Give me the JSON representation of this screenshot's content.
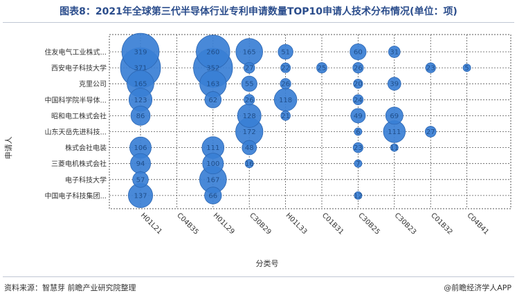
{
  "title": "图表8：2021年全球第三代半导体行业专利申请数量TOP10申请人技术分布情况(单位：项)",
  "source": "资料来源：智慧芽 前瞻产业研究院整理",
  "brand": "@前瞻经济学人APP",
  "chart_data": {
    "type": "scatter",
    "title": "图表8：2021年全球第三代半导体行业专利申请数量TOP10申请人技术分布情况(单位：项)",
    "xlabel": "分类号",
    "ylabel": "申请人",
    "x_categories": [
      "H01L21",
      "C04B35",
      "H01L29",
      "C30B29",
      "H01L33",
      "C01B31",
      "C30B25",
      "C30B23",
      "C01B32",
      "C04B41"
    ],
    "y_categories": [
      "住友电气工业株式...",
      "西安电子科技大学",
      "克里公司",
      "中国科学院半导体...",
      "昭和电工株式会社",
      "山东天岳先进科技...",
      "株式会社电装",
      "三菱电机株式会社",
      "电子科技大学",
      "中国电子科技集团..."
    ],
    "grid": "dashed",
    "colors": {
      "bubble": "#3a7fd5",
      "bubble_stroke": "#2b66b3",
      "label": "#1f4e8a"
    },
    "points": [
      {
        "applicant": "住友电气工业株式...",
        "class": "H01L21",
        "value": 319
      },
      {
        "applicant": "住友电气工业株式...",
        "class": "H01L29",
        "value": 260
      },
      {
        "applicant": "住友电气工业株式...",
        "class": "C30B29",
        "value": 165
      },
      {
        "applicant": "住友电气工业株式...",
        "class": "H01L33",
        "value": 51
      },
      {
        "applicant": "住友电气工业株式...",
        "class": "C30B25",
        "value": 60
      },
      {
        "applicant": "住友电气工业株式...",
        "class": "C30B23",
        "value": 31
      },
      {
        "applicant": "西安电子科技大学",
        "class": "H01L21",
        "value": 371
      },
      {
        "applicant": "西安电子科技大学",
        "class": "H01L29",
        "value": 352
      },
      {
        "applicant": "西安电子科技大学",
        "class": "C30B29",
        "value": 27
      },
      {
        "applicant": "西安电子科技大学",
        "class": "H01L33",
        "value": 22
      },
      {
        "applicant": "西安电子科技大学",
        "class": "C01B31",
        "value": 25
      },
      {
        "applicant": "西安电子科技大学",
        "class": "C30B25",
        "value": 26
      },
      {
        "applicant": "西安电子科技大学",
        "class": "C01B32",
        "value": 23
      },
      {
        "applicant": "西安电子科技大学",
        "class": "C04B41",
        "value": 5
      },
      {
        "applicant": "克里公司",
        "class": "H01L21",
        "value": 165
      },
      {
        "applicant": "克里公司",
        "class": "H01L29",
        "value": 163
      },
      {
        "applicant": "克里公司",
        "class": "C30B29",
        "value": 55
      },
      {
        "applicant": "克里公司",
        "class": "H01L33",
        "value": 26
      },
      {
        "applicant": "克里公司",
        "class": "C30B25",
        "value": 20
      },
      {
        "applicant": "克里公司",
        "class": "C30B23",
        "value": 39
      },
      {
        "applicant": "中国科学院半导体...",
        "class": "H01L21",
        "value": 123
      },
      {
        "applicant": "中国科学院半导体...",
        "class": "H01L29",
        "value": 62
      },
      {
        "applicant": "中国科学院半导体...",
        "class": "C30B29",
        "value": 26
      },
      {
        "applicant": "中国科学院半导体...",
        "class": "H01L33",
        "value": 118
      },
      {
        "applicant": "中国科学院半导体...",
        "class": "C30B25",
        "value": 24
      },
      {
        "applicant": "昭和电工株式会社",
        "class": "H01L21",
        "value": 86
      },
      {
        "applicant": "昭和电工株式会社",
        "class": "C30B29",
        "value": 128
      },
      {
        "applicant": "昭和电工株式会社",
        "class": "H01L33",
        "value": 21
      },
      {
        "applicant": "昭和电工株式会社",
        "class": "C30B25",
        "value": 49
      },
      {
        "applicant": "昭和电工株式会社",
        "class": "C30B23",
        "value": 69
      },
      {
        "applicant": "山东天岳先进科技...",
        "class": "C30B29",
        "value": 172
      },
      {
        "applicant": "山东天岳先进科技...",
        "class": "C30B25",
        "value": 6
      },
      {
        "applicant": "山东天岳先进科技...",
        "class": "C30B23",
        "value": 111
      },
      {
        "applicant": "山东天岳先进科技...",
        "class": "C01B32",
        "value": 27
      },
      {
        "applicant": "株式会社电装",
        "class": "H01L21",
        "value": 106
      },
      {
        "applicant": "株式会社电装",
        "class": "H01L29",
        "value": 111
      },
      {
        "applicant": "株式会社电装",
        "class": "C30B29",
        "value": 48
      },
      {
        "applicant": "株式会社电装",
        "class": "C30B25",
        "value": 23
      },
      {
        "applicant": "株式会社电装",
        "class": "C30B23",
        "value": 11
      },
      {
        "applicant": "三菱电机株式会社",
        "class": "H01L21",
        "value": 94
      },
      {
        "applicant": "三菱电机株式会社",
        "class": "H01L29",
        "value": 100
      },
      {
        "applicant": "三菱电机株式会社",
        "class": "C30B29",
        "value": 16
      },
      {
        "applicant": "三菱电机株式会社",
        "class": "C30B25",
        "value": 7
      },
      {
        "applicant": "电子科技大学",
        "class": "H01L21",
        "value": 57
      },
      {
        "applicant": "电子科技大学",
        "class": "H01L29",
        "value": 167
      },
      {
        "applicant": "中国电子科技集团...",
        "class": "H01L21",
        "value": 137
      },
      {
        "applicant": "中国电子科技集团...",
        "class": "H01L29",
        "value": 66
      },
      {
        "applicant": "中国电子科技集团...",
        "class": "C30B25",
        "value": 12
      }
    ]
  }
}
